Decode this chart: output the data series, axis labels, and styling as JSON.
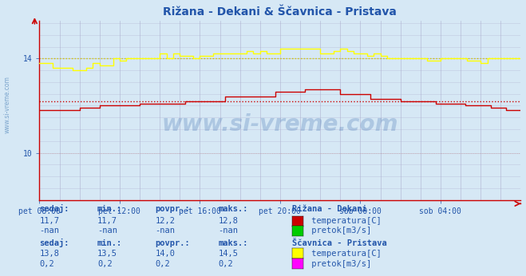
{
  "title": "Rižana - Dekani & Ščavnica - Pristava",
  "bg_color": "#d6e8f5",
  "plot_bg_color": "#d6e8f5",
  "grid_color": "#aaaacc",
  "xlim": [
    0,
    288
  ],
  "ylim": [
    8.0,
    15.6
  ],
  "ytick_positions": [
    10,
    14
  ],
  "ytick_labels": [
    "10",
    "14"
  ],
  "xtick_labels": [
    "pet 08:00",
    "pet 12:00",
    "pet 16:00",
    "pet 20:00",
    "sob 00:00",
    "sob 04:00"
  ],
  "xtick_positions": [
    0,
    48,
    96,
    144,
    192,
    240
  ],
  "rizana_temp_color": "#cc0000",
  "rizana_temp_avg": 12.2,
  "scavnica_temp_color": "#ffff00",
  "scavnica_temp_avg": 14.0,
  "scavnica_pretok_color": "#ff00ff",
  "scavnica_pretok_val": 0.2,
  "watermark": "www.si-vreme.com",
  "label_color": "#2255aa",
  "axis_color": "#cc0000",
  "title_color": "#2255aa",
  "rizana_green_color": "#00cc00",
  "bg_light": "#e8f4fb"
}
